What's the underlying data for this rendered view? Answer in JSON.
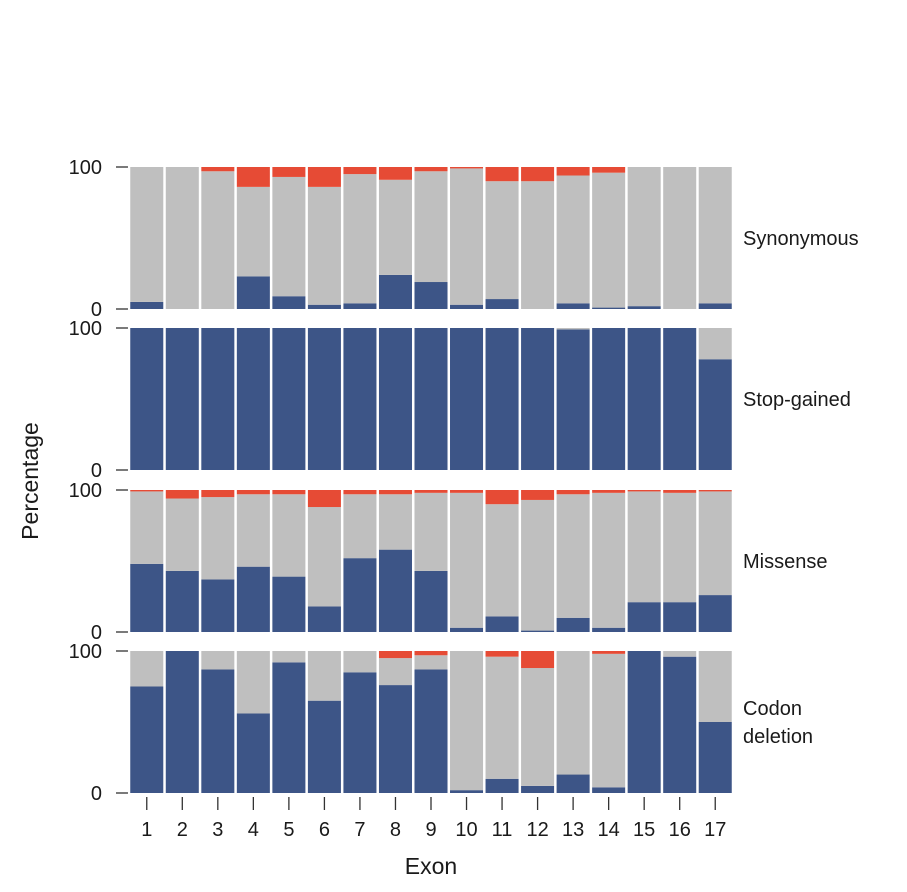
{
  "chart_data": {
    "type": "bar",
    "stacked": true,
    "xlabel": "Exon",
    "ylabel": "Percentage",
    "ylim": [
      0,
      100
    ],
    "yticks": [
      0,
      100
    ],
    "categories": [
      "1",
      "2",
      "3",
      "4",
      "5",
      "6",
      "7",
      "8",
      "9",
      "10",
      "11",
      "12",
      "13",
      "14",
      "15",
      "16",
      "17"
    ],
    "stack_colors": [
      "#3d5587",
      "#bfbfbf",
      "#e64b35"
    ],
    "panels": [
      {
        "label": "Synonymous",
        "series": [
          {
            "color": "#3d5587",
            "values": [
              5,
              0,
              0,
              23,
              9,
              3,
              4,
              24,
              19,
              3,
              7,
              0,
              4,
              1,
              2,
              0,
              4
            ]
          },
          {
            "color": "#bfbfbf",
            "values": [
              95,
              100,
              97,
              63,
              84,
              83,
              91,
              67,
              78,
              96,
              83,
              90,
              90,
              95,
              98,
              100,
              96
            ]
          },
          {
            "color": "#e64b35",
            "values": [
              0,
              0,
              3,
              14,
              7,
              14,
              5,
              9,
              3,
              1,
              10,
              10,
              6,
              4,
              0,
              0,
              0
            ]
          }
        ]
      },
      {
        "label": "Stop-gained",
        "series": [
          {
            "color": "#3d5587",
            "values": [
              100,
              100,
              100,
              100,
              100,
              100,
              100,
              100,
              100,
              100,
              100,
              100,
              99,
              100,
              100,
              100,
              78
            ]
          },
          {
            "color": "#bfbfbf",
            "values": [
              0,
              0,
              0,
              0,
              0,
              0,
              0,
              0,
              0,
              0,
              0,
              0,
              1,
              0,
              0,
              0,
              22
            ]
          },
          {
            "color": "#e64b35",
            "values": [
              0,
              0,
              0,
              0,
              0,
              0,
              0,
              0,
              0,
              0,
              0,
              0,
              0,
              0,
              0,
              0,
              0
            ]
          }
        ]
      },
      {
        "label": "Missense",
        "series": [
          {
            "color": "#3d5587",
            "values": [
              48,
              43,
              37,
              46,
              39,
              18,
              52,
              58,
              43,
              3,
              11,
              1,
              10,
              3,
              21,
              21,
              26
            ]
          },
          {
            "color": "#bfbfbf",
            "values": [
              51,
              51,
              58,
              51,
              58,
              70,
              45,
              39,
              55,
              95,
              79,
              92,
              87,
              95,
              78,
              77,
              73
            ]
          },
          {
            "color": "#e64b35",
            "values": [
              1,
              6,
              5,
              3,
              3,
              12,
              3,
              3,
              2,
              2,
              10,
              7,
              3,
              2,
              1,
              2,
              1
            ]
          }
        ]
      },
      {
        "label": "Codon deletion",
        "label_lines": [
          "Codon",
          "deletion"
        ],
        "series": [
          {
            "color": "#3d5587",
            "values": [
              75,
              100,
              87,
              56,
              92,
              65,
              85,
              76,
              87,
              2,
              10,
              5,
              13,
              4,
              100,
              96,
              50
            ]
          },
          {
            "color": "#bfbfbf",
            "values": [
              25,
              0,
              13,
              44,
              8,
              35,
              15,
              19,
              10,
              98,
              86,
              83,
              87,
              94,
              0,
              4,
              50
            ]
          },
          {
            "color": "#e64b35",
            "values": [
              0,
              0,
              0,
              0,
              0,
              0,
              0,
              5,
              3,
              0,
              4,
              12,
              0,
              2,
              0,
              0,
              0
            ]
          }
        ]
      }
    ]
  }
}
